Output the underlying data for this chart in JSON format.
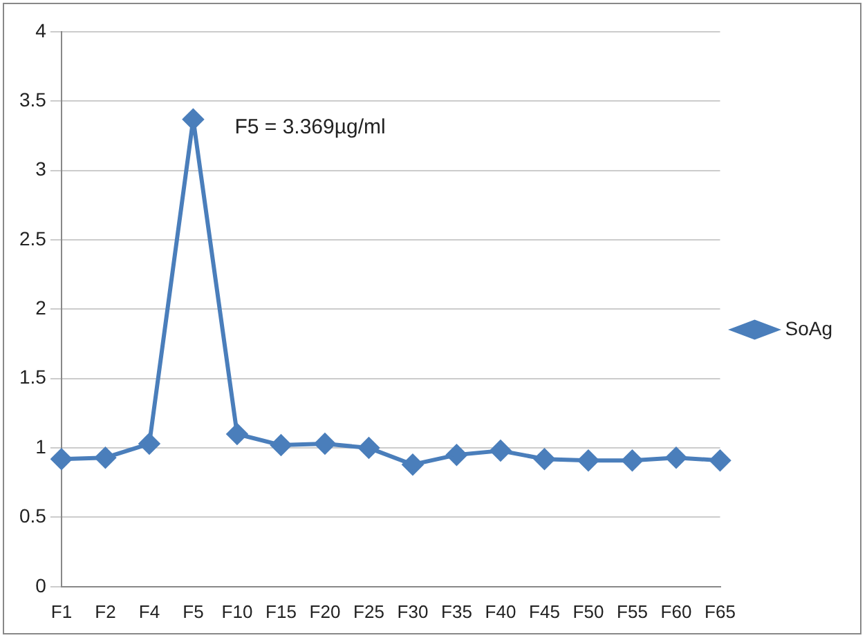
{
  "chart_data": {
    "type": "line",
    "categories": [
      "F1",
      "F2",
      "F4",
      "F5",
      "F10",
      "F15",
      "F20",
      "F25",
      "F30",
      "F35",
      "F40",
      "F45",
      "F50",
      "F55",
      "F60",
      "F65"
    ],
    "series": [
      {
        "name": "SoAg",
        "color": "#4a7ebb",
        "values": [
          0.92,
          0.93,
          1.03,
          3.369,
          1.1,
          1.02,
          1.03,
          1.0,
          0.88,
          0.95,
          0.98,
          0.92,
          0.91,
          0.91,
          0.93,
          0.91
        ]
      }
    ],
    "ylim": [
      0,
      4
    ],
    "yticks": [
      0,
      0.5,
      1,
      1.5,
      2,
      2.5,
      3,
      3.5,
      4
    ],
    "grid": "y",
    "legend": "right",
    "marker": "diamond",
    "annotations": [
      {
        "text": "F5 = 3.369µg/ml",
        "x": "F5",
        "y": 3.369
      }
    ]
  }
}
